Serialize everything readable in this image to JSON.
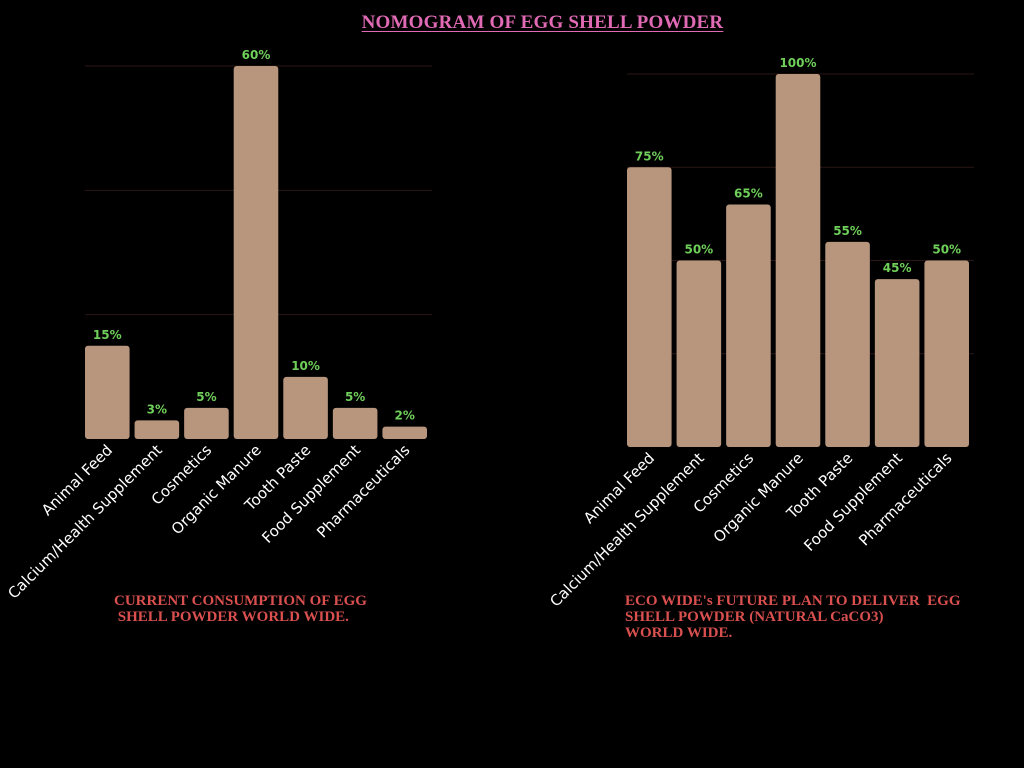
{
  "title": "NOMOGRAM  OF  EGG SHELL  POWDER",
  "colors": {
    "bar": "#b8967e",
    "label": "#6fcf5a",
    "grid": "#2a1616",
    "title": "#e06ab4",
    "caption": "#d9504f",
    "tick": "#ffffff"
  },
  "chart_data": [
    {
      "type": "bar",
      "title": "CURRENT CONSUMPTION OF EGG\n SHELL POWDER WORLD WIDE.",
      "categories": [
        "Animal Feed",
        "Calcium/Health Supplement",
        "Cosmetics",
        "Organic Manure",
        "Tooth Paste",
        "Food Supplement",
        "Pharmaceuticals"
      ],
      "values": [
        15,
        3,
        5,
        60,
        10,
        5,
        2
      ],
      "labels": [
        "15%",
        "3%",
        "5%",
        "60%",
        "10%",
        "5%",
        "2%"
      ],
      "ylim": [
        0,
        60
      ],
      "grid_step": 20,
      "grid": true,
      "xlabel": "",
      "ylabel": ""
    },
    {
      "type": "bar",
      "title": "ECO WIDE's FUTURE PLAN TO DELIVER  EGG\nSHELL POWDER (NATURAL CaCO3)\nWORLD WIDE.",
      "categories": [
        "Animal Feed",
        "Calcium/Health Supplement",
        "Cosmetics",
        "Organic Manure",
        "Tooth Paste",
        "Food Supplement",
        "Pharmaceuticals"
      ],
      "values": [
        75,
        50,
        65,
        100,
        55,
        45,
        50
      ],
      "labels": [
        "75%",
        "50%",
        "65%",
        "100%",
        "55%",
        "45%",
        "50%"
      ],
      "ylim": [
        0,
        100
      ],
      "grid_step": 25,
      "grid": true,
      "xlabel": "",
      "ylabel": ""
    }
  ]
}
